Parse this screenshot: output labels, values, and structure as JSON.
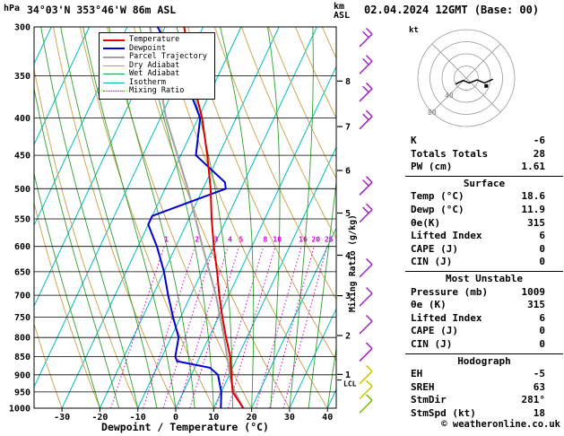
{
  "header": {
    "station": "34°03'N 353°46'W 86m ASL",
    "datetime": "02.04.2024 12GMT (Base: 00)",
    "pressure_unit": "hPa",
    "altitude_unit_line1": "km",
    "altitude_unit_line2": "ASL"
  },
  "legend": [
    {
      "label": "Temperature",
      "color": "#dd0000",
      "width": 2,
      "dash": false
    },
    {
      "label": "Dewpoint",
      "color": "#0000cc",
      "width": 2,
      "dash": false
    },
    {
      "label": "Parcel Trajectory",
      "color": "#a0a0a0",
      "width": 2,
      "dash": false
    },
    {
      "label": "Dry Adiabat",
      "color": "#c8a048",
      "width": 1,
      "dash": false
    },
    {
      "label": "Wet Adiabat",
      "color": "#2fa12f",
      "width": 1,
      "dash": false
    },
    {
      "label": "Isotherm",
      "color": "#00bcbc",
      "width": 1,
      "dash": false
    },
    {
      "label": "Mixing Ratio",
      "color": "#d400d4",
      "width": 1,
      "dash": true
    }
  ],
  "chart_data": {
    "type": "line",
    "subtype": "skew-t-log-p-sounding",
    "title": "34°03'N 353°46'W 86m ASL",
    "x_axis": {
      "label": "Dewpoint / Temperature (°C)",
      "unit": "°C",
      "ticks": [
        -30,
        -20,
        -10,
        0,
        10,
        20,
        30,
        40
      ]
    },
    "y_axis": {
      "unit": "hPa",
      "scale": "log",
      "ticks": [
        300,
        350,
        400,
        450,
        500,
        550,
        600,
        650,
        700,
        750,
        800,
        850,
        900,
        950,
        1000
      ]
    },
    "altitude_axis": {
      "unit": "km ASL",
      "ticks": [
        {
          "km": 8,
          "p": 356
        },
        {
          "km": 7,
          "p": 411
        },
        {
          "km": 6,
          "p": 472
        },
        {
          "km": 5,
          "p": 540
        },
        {
          "km": 4,
          "p": 617
        },
        {
          "km": 3,
          "p": 701
        },
        {
          "km": 2,
          "p": 795
        },
        {
          "km": 1,
          "p": 899
        }
      ],
      "lcl": {
        "label": "LCL",
        "p": 915
      }
    },
    "series": [
      {
        "key": "parcel-curve",
        "name": "Parcel Trajectory",
        "color": "#a0a0a0",
        "width": 2,
        "points": [
          [
            1000,
            17.8
          ],
          [
            950,
            13.6
          ],
          [
            915,
            11.0
          ],
          [
            850,
            7.2
          ],
          [
            800,
            4.0
          ],
          [
            700,
            -3.4
          ],
          [
            600,
            -13.0
          ],
          [
            500,
            -24.0
          ],
          [
            400,
            -38.5
          ],
          [
            300,
            -54.0
          ]
        ]
      },
      {
        "key": "dewpoint-curve",
        "name": "Dewpoint",
        "color": "#0000cc",
        "width": 2,
        "points": [
          [
            1000,
            11.9
          ],
          [
            950,
            10.0
          ],
          [
            900,
            7.0
          ],
          [
            880,
            4.0
          ],
          [
            862,
            -5.5
          ],
          [
            850,
            -6.5
          ],
          [
            800,
            -8.0
          ],
          [
            750,
            -12.0
          ],
          [
            700,
            -16.0
          ],
          [
            650,
            -20.0
          ],
          [
            600,
            -25.0
          ],
          [
            560,
            -30.0
          ],
          [
            545,
            -30.0
          ],
          [
            500,
            -14.0
          ],
          [
            490,
            -15.0
          ],
          [
            450,
            -26.0
          ],
          [
            400,
            -29.5
          ],
          [
            350,
            -39.0
          ],
          [
            300,
            -52.0
          ]
        ]
      },
      {
        "key": "temperature-curve",
        "name": "Temperature",
        "color": "#dd0000",
        "width": 2,
        "points": [
          [
            1000,
            17.8
          ],
          [
            950,
            13.0
          ],
          [
            900,
            10.5
          ],
          [
            850,
            8.0
          ],
          [
            800,
            4.5
          ],
          [
            750,
            1.0
          ],
          [
            700,
            -2.5
          ],
          [
            650,
            -6.0
          ],
          [
            600,
            -10.0
          ],
          [
            550,
            -14.0
          ],
          [
            500,
            -18.0
          ],
          [
            450,
            -23.0
          ],
          [
            400,
            -29.0
          ],
          [
            350,
            -37.0
          ],
          [
            300,
            -45.0
          ]
        ]
      }
    ],
    "background_lines": {
      "isotherms": {
        "color": "#00bcbc",
        "from": -80,
        "to": 40,
        "step": 10
      },
      "dry_adiabats": {
        "color": "#c8a048",
        "from": -30,
        "to": 150,
        "step": 10
      },
      "wet_adiabats": {
        "color": "#2fa12f",
        "from": -20,
        "to": 40,
        "step": 5
      },
      "mixing_ratio": {
        "color": "#d400d4",
        "values": [
          1,
          2,
          3,
          4,
          5,
          8,
          10,
          16,
          20,
          25
        ],
        "axis_label": "Mixing Ratio (g/kg)",
        "top_pressure": 600
      }
    },
    "wind_barbs": [
      {
        "p": 313,
        "color": "#a020c0",
        "ticks": 2
      },
      {
        "p": 341,
        "color": "#a020c0",
        "ticks": 2
      },
      {
        "p": 372,
        "color": "#a020c0",
        "ticks": 2
      },
      {
        "p": 406,
        "color": "#a020c0",
        "ticks": 2
      },
      {
        "p": 500,
        "color": "#a020c0",
        "ticks": 2
      },
      {
        "p": 545,
        "color": "#a020c0",
        "ticks": 2
      },
      {
        "p": 648,
        "color": "#a020c0",
        "ticks": 1
      },
      {
        "p": 710,
        "color": "#a020c0",
        "ticks": 1
      },
      {
        "p": 775,
        "color": "#a020c0",
        "ticks": 1
      },
      {
        "p": 845,
        "color": "#a020c0",
        "ticks": 1
      },
      {
        "p": 908,
        "color": "#c8c800",
        "ticks": 1
      },
      {
        "p": 952,
        "color": "#c8c800",
        "ticks": 1
      },
      {
        "p": 995,
        "color": "#7ab800",
        "ticks": 1
      }
    ]
  },
  "hodograph": {
    "unit": "kt",
    "rings_kt": [
      20,
      40,
      60,
      80
    ],
    "ring_labels": [
      {
        "kt": 40,
        "label": "40"
      },
      {
        "kt": 80,
        "label": "80"
      }
    ],
    "trace_kt": [
      [
        -18,
        -10
      ],
      [
        -5,
        -4
      ],
      [
        5,
        -8
      ],
      [
        18,
        -3
      ],
      [
        30,
        -8
      ],
      [
        44,
        -2
      ]
    ],
    "marker_kt": [
      33,
      -13
    ]
  },
  "table": {
    "sections": [
      {
        "title": "",
        "rows": [
          [
            "K",
            "-6"
          ],
          [
            "Totals Totals",
            "28"
          ],
          [
            "PW (cm)",
            "1.61"
          ]
        ]
      },
      {
        "title": "Surface",
        "rows": [
          [
            "Temp (°C)",
            "18.6"
          ],
          [
            "Dewp (°C)",
            "11.9"
          ],
          [
            "θe(K)",
            "315"
          ],
          [
            "Lifted Index",
            "6"
          ],
          [
            "CAPE (J)",
            "0"
          ],
          [
            "CIN (J)",
            "0"
          ]
        ]
      },
      {
        "title": "Most Unstable",
        "rows": [
          [
            "Pressure (mb)",
            "1009"
          ],
          [
            "θe (K)",
            "315"
          ],
          [
            "Lifted Index",
            "6"
          ],
          [
            "CAPE (J)",
            "0"
          ],
          [
            "CIN (J)",
            "0"
          ]
        ]
      },
      {
        "title": "Hodograph",
        "rows": [
          [
            "EH",
            "-5"
          ],
          [
            "SREH",
            "63"
          ],
          [
            "StmDir",
            "281°"
          ],
          [
            "StmSpd (kt)",
            "18"
          ]
        ]
      }
    ]
  },
  "footer": {
    "copyright": "© weatheronline.co.uk"
  }
}
